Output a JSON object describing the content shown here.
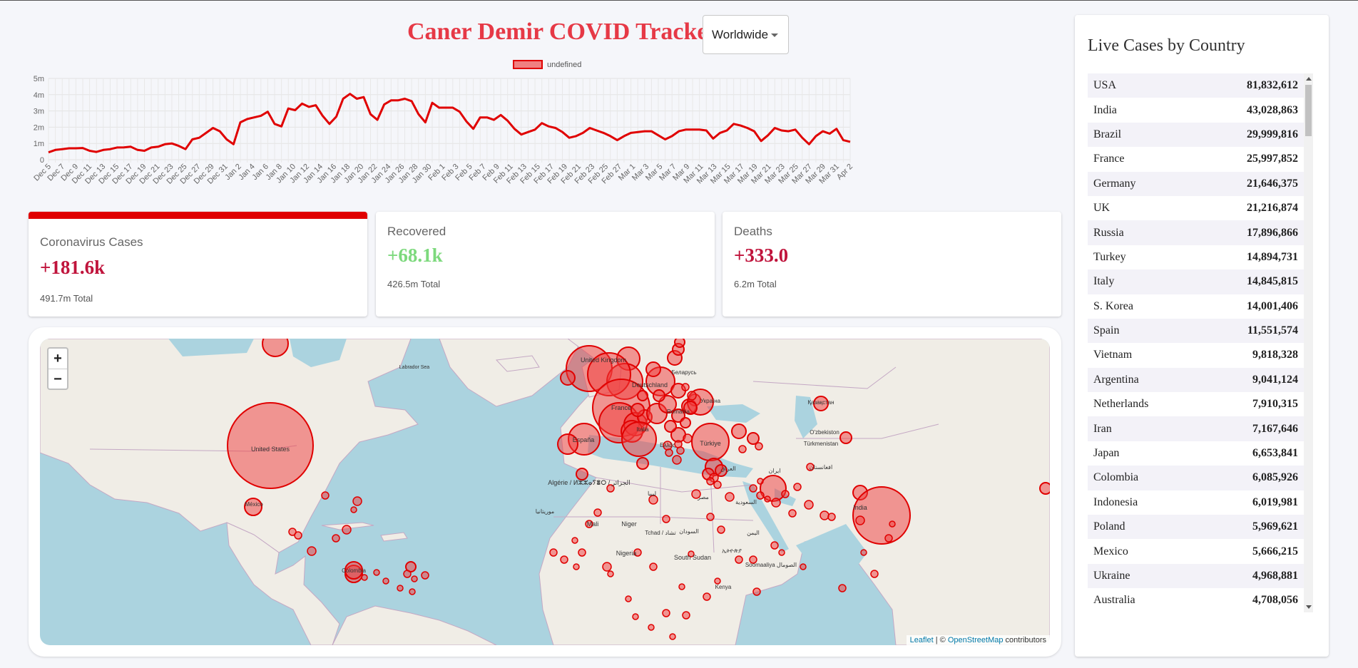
{
  "app": {
    "title": "Caner Demir COVID Tracker"
  },
  "country_select": {
    "value": "Worldwide"
  },
  "stats": [
    {
      "title": "Coronavirus Cases",
      "value": "+181.6k",
      "total": "491.7m Total",
      "color": "#c0143c",
      "selected": true
    },
    {
      "title": "Recovered",
      "value": "+68.1k",
      "total": "426.5m Total",
      "color": "#7dd97d",
      "selected": false
    },
    {
      "title": "Deaths",
      "value": "+333.0",
      "total": "6.2m Total",
      "color": "#c0143c",
      "selected": false
    }
  ],
  "chart_data": {
    "type": "line",
    "legend": "undefined",
    "y_ticks": [
      "0",
      "1m",
      "2m",
      "3m",
      "4m",
      "5m"
    ],
    "ylim": [
      0,
      5000000
    ],
    "grid": true,
    "line_color": "#e00000",
    "x_labels": [
      "Dec 5",
      "Dec 7",
      "Dec 9",
      "Dec 11",
      "Dec 13",
      "Dec 15",
      "Dec 17",
      "Dec 19",
      "Dec 21",
      "Dec 23",
      "Dec 25",
      "Dec 27",
      "Dec 29",
      "Dec 31",
      "Jan 2",
      "Jan 4",
      "Jan 6",
      "Jan 8",
      "Jan 10",
      "Jan 12",
      "Jan 14",
      "Jan 16",
      "Jan 18",
      "Jan 20",
      "Jan 22",
      "Jan 24",
      "Jan 26",
      "Jan 28",
      "Jan 30",
      "Feb 1",
      "Feb 3",
      "Feb 5",
      "Feb 7",
      "Feb 9",
      "Feb 11",
      "Feb 13",
      "Feb 15",
      "Feb 17",
      "Feb 19",
      "Feb 21",
      "Feb 23",
      "Feb 25",
      "Feb 27",
      "Mar 1",
      "Mar 3",
      "Mar 5",
      "Mar 7",
      "Mar 9",
      "Mar 11",
      "Mar 13",
      "Mar 15",
      "Mar 17",
      "Mar 19",
      "Mar 21",
      "Mar 23",
      "Mar 25",
      "Mar 27",
      "Mar 29",
      "Mar 31",
      "Apr 2"
    ],
    "values": [
      450000,
      600000,
      650000,
      700000,
      700000,
      720000,
      550000,
      480000,
      600000,
      650000,
      750000,
      760000,
      800000,
      600000,
      550000,
      750000,
      800000,
      950000,
      1000000,
      850000,
      650000,
      1250000,
      1350000,
      1650000,
      1950000,
      1750000,
      1250000,
      950000,
      2300000,
      2500000,
      2600000,
      2700000,
      2950000,
      2200000,
      2050000,
      3150000,
      3050000,
      3450000,
      3250000,
      3350000,
      2700000,
      2200000,
      2650000,
      3750000,
      4050000,
      3750000,
      3850000,
      2800000,
      2450000,
      3400000,
      3650000,
      3650000,
      3750000,
      3600000,
      2800000,
      2300000,
      3500000,
      3200000,
      3200000,
      3200000,
      2950000,
      2350000,
      1900000,
      2600000,
      2600000,
      2450000,
      2750000,
      2400000,
      1900000,
      1550000,
      1700000,
      1850000,
      2250000,
      2050000,
      1950000,
      1700000,
      1350000,
      1450000,
      1650000,
      1950000,
      1800000,
      1650000,
      1450000,
      1200000,
      1450000,
      1650000,
      1700000,
      1750000,
      1750000,
      1500000,
      1250000,
      1450000,
      1750000,
      1850000,
      1850000,
      1850000,
      1800000,
      1300000,
      1650000,
      1800000,
      2200000,
      2100000,
      1950000,
      1750000,
      1150000,
      1500000,
      1950000,
      1800000,
      1750000,
      1850000,
      1350000,
      950000,
      1450000,
      1750000,
      1600000,
      1900000,
      1200000,
      1100000
    ]
  },
  "map": {
    "zoom_in": "+",
    "zoom_out": "−",
    "attribution_leaflet": "Leaflet",
    "attribution_sep": " | © ",
    "attribution_osm": "OpenStreetMap",
    "attribution_tail": " contributors",
    "labels": [
      "United States",
      "México",
      "Labrador Sea",
      "United Kingdom",
      "Deutschland",
      "France",
      "España",
      "Italia",
      "Ελλάς",
      "Беларусь",
      "Україна",
      "România",
      "Türkiye",
      "Қазақстан",
      "O'zbekiston",
      "Türkmenistan",
      "افغانستان",
      "ایران",
      "العراق",
      "السعودية",
      "India",
      "Algérie / ⵍⵣⵣⴰⵢⴻⵔ / الجزائر",
      "ليبيا",
      "مصر",
      "السودان",
      "موريتانيا",
      "Mali",
      "Niger",
      "Tchad / تشاد",
      "Nigeria",
      "South Sudan",
      "Soomaaliya الصومال",
      "ኢትዮጵያ",
      "Kenya",
      "Colombia",
      "اليمن"
    ]
  },
  "sidebar": {
    "title": "Live Cases by Country",
    "rows": [
      [
        "USA",
        "81,832,612"
      ],
      [
        "India",
        "43,028,863"
      ],
      [
        "Brazil",
        "29,999,816"
      ],
      [
        "France",
        "25,997,852"
      ],
      [
        "Germany",
        "21,646,375"
      ],
      [
        "UK",
        "21,216,874"
      ],
      [
        "Russia",
        "17,896,866"
      ],
      [
        "Turkey",
        "14,894,731"
      ],
      [
        "Italy",
        "14,845,815"
      ],
      [
        "S. Korea",
        "14,001,406"
      ],
      [
        "Spain",
        "11,551,574"
      ],
      [
        "Vietnam",
        "9,818,328"
      ],
      [
        "Argentina",
        "9,041,124"
      ],
      [
        "Netherlands",
        "7,910,315"
      ],
      [
        "Iran",
        "7,167,646"
      ],
      [
        "Japan",
        "6,653,841"
      ],
      [
        "Colombia",
        "6,085,926"
      ],
      [
        "Indonesia",
        "6,019,981"
      ],
      [
        "Poland",
        "5,969,621"
      ],
      [
        "Mexico",
        "5,666,215"
      ],
      [
        "Ukraine",
        "4,968,881"
      ],
      [
        "Australia",
        "4,708,056"
      ]
    ]
  }
}
